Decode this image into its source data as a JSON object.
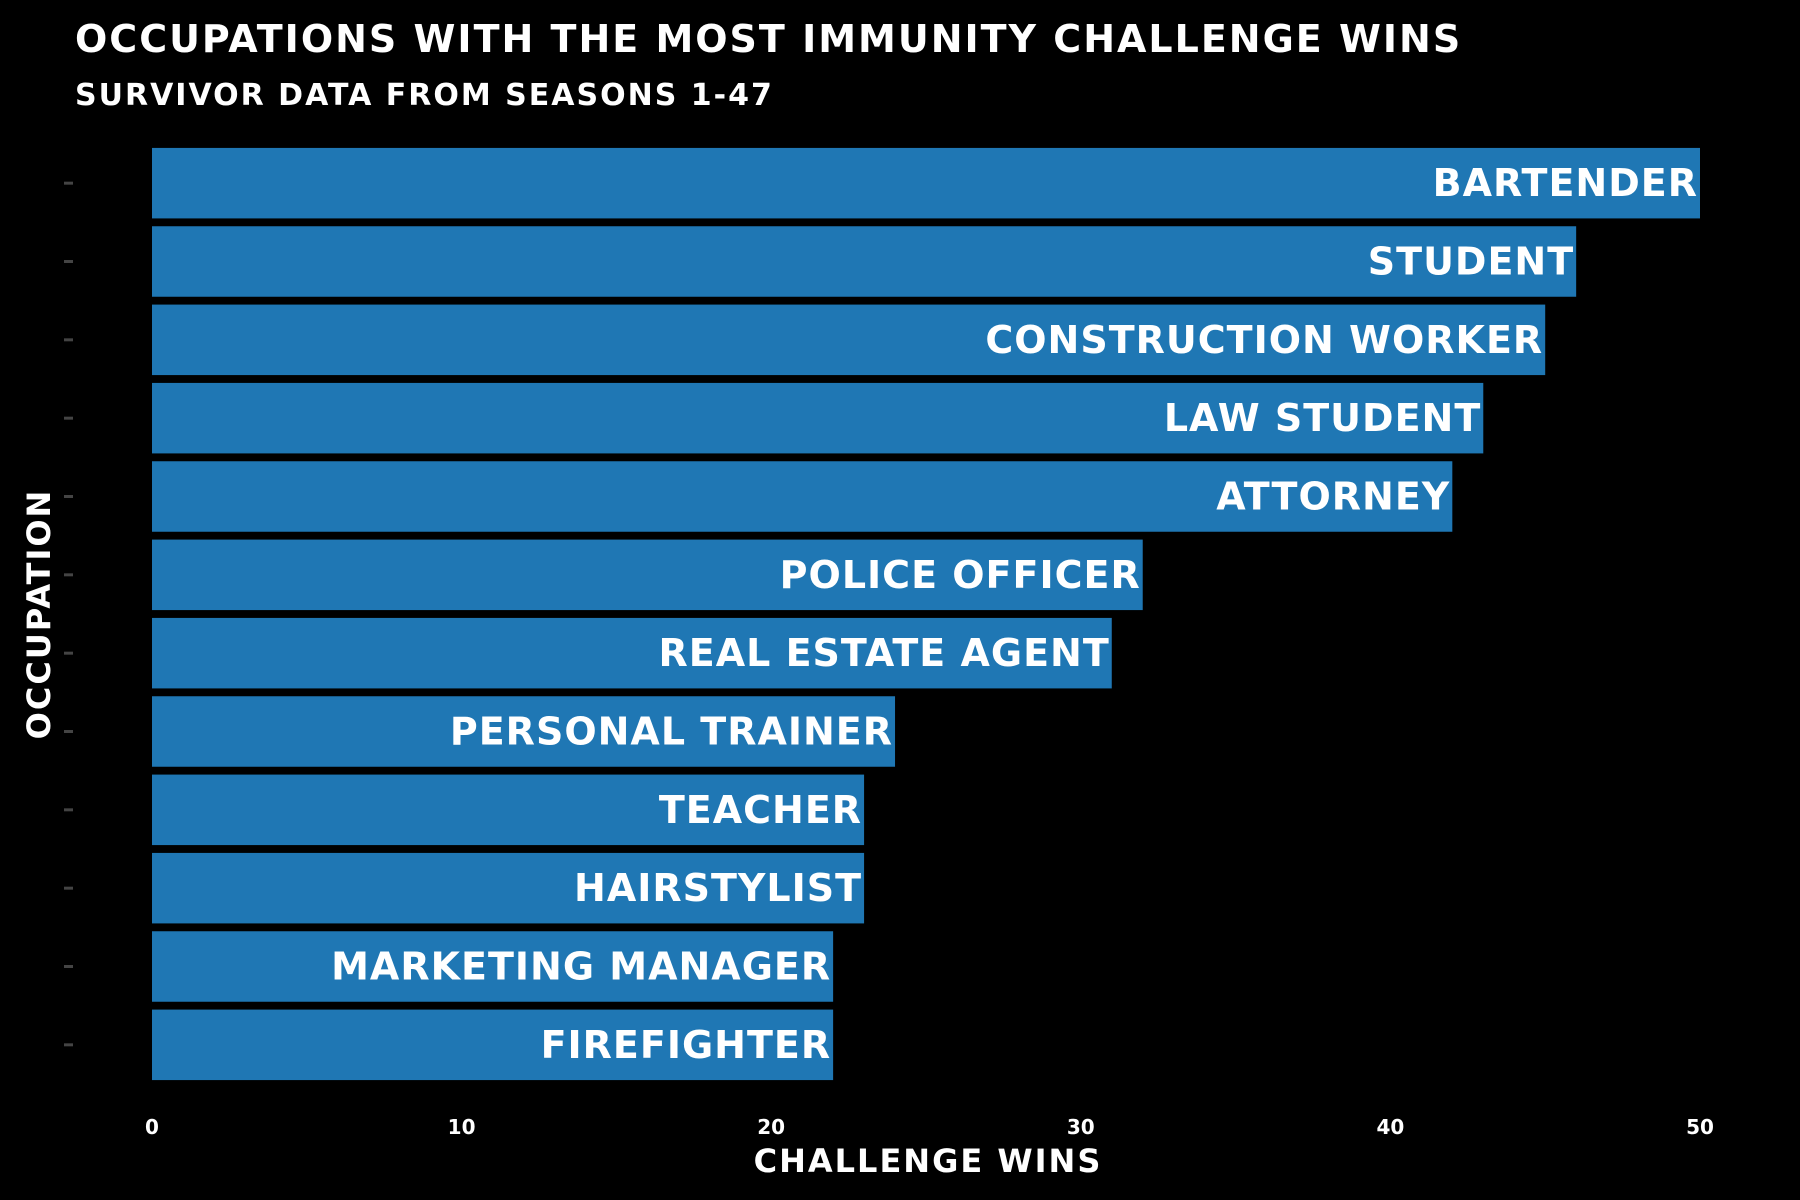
{
  "chart_data": {
    "type": "bar",
    "orientation": "horizontal",
    "title": "OCCUPATIONS WITH THE MOST IMMUNITY CHALLENGE WINS",
    "subtitle": "SURVIVOR DATA FROM SEASONS 1-47",
    "xlabel": "CHALLENGE WINS",
    "ylabel": "OCCUPATION",
    "xlim": [
      0,
      50
    ],
    "xticks": [
      0,
      10,
      20,
      30,
      40,
      50
    ],
    "grid": false,
    "legend": "none",
    "bar_color": "#1f77b4",
    "background": "#000000",
    "text_color": "#ffffff",
    "categories": [
      "BARTENDER",
      "STUDENT",
      "CONSTRUCTION WORKER",
      "LAW STUDENT",
      "ATTORNEY",
      "POLICE OFFICER",
      "REAL ESTATE AGENT",
      "PERSONAL TRAINER",
      "TEACHER",
      "HAIRSTYLIST",
      "MARKETING MANAGER",
      "FIREFIGHTER"
    ],
    "values": [
      50,
      46,
      45,
      43,
      42,
      32,
      31,
      24,
      23,
      23,
      22,
      22
    ]
  }
}
